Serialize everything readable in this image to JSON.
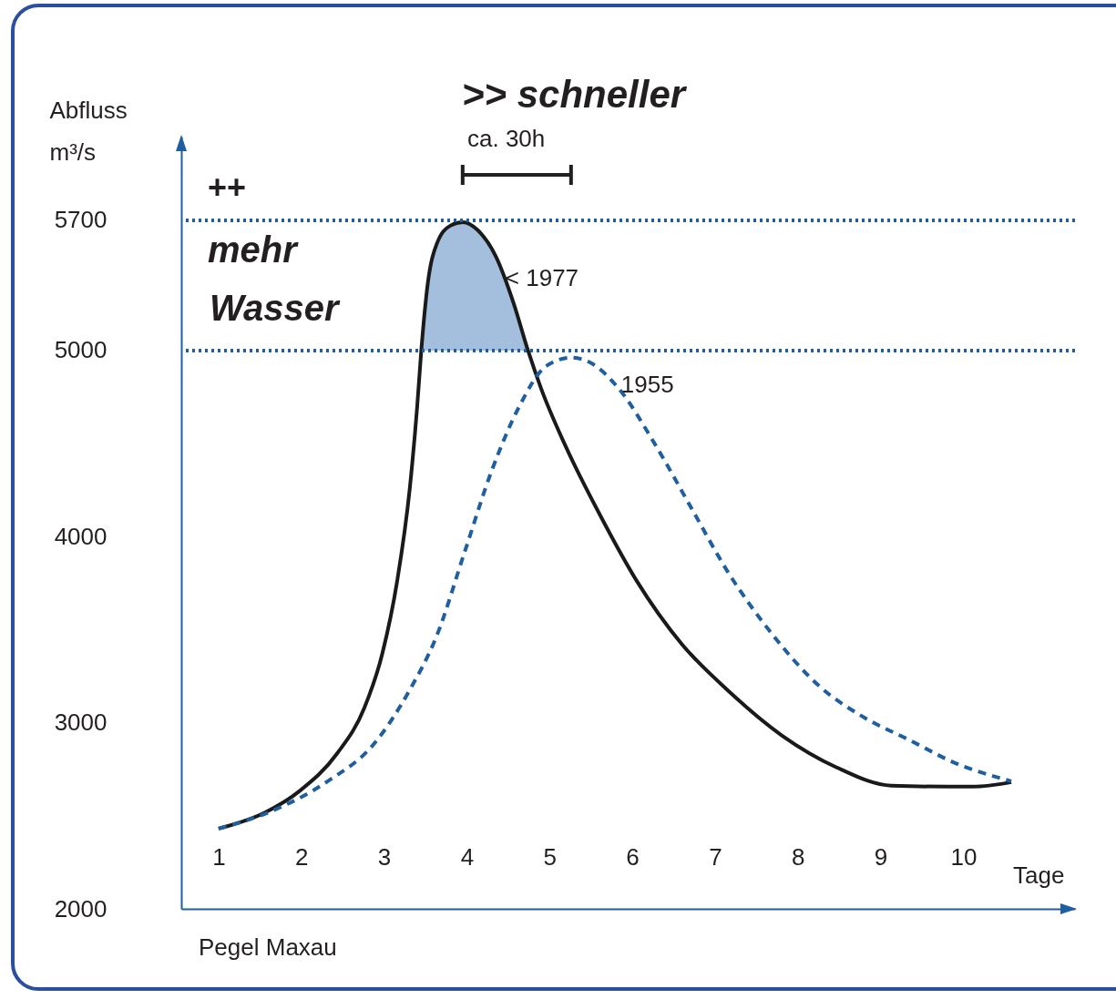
{
  "chart_data": {
    "type": "line",
    "xlabel": "Tage",
    "ylabel": "Abfluss m³/s",
    "xlim": [
      0.55,
      11.35
    ],
    "xticks": [
      1,
      2,
      3,
      4,
      5,
      6,
      7,
      8,
      9,
      10
    ],
    "ylim": [
      2000,
      6150
    ],
    "yticks": [
      2000,
      3000,
      4000,
      5000,
      5700
    ],
    "grid": false,
    "marker": "none",
    "series": [
      {
        "type": "area",
        "color": "#a3bfdd",
        "x": [
          3.45,
          3.53,
          3.64,
          3.8,
          3.95,
          4.13,
          4.35,
          4.57,
          4.74
        ],
        "values": [
          5000,
          5366,
          5577,
          5671,
          5690,
          5648,
          5507,
          5249,
          5000
        ]
      },
      {
        "name": "< 1977",
        "color": "#1a1a1a",
        "line_style": "solid",
        "x": [
          1,
          1.55,
          1.99,
          2.43,
          2.76,
          2.98,
          3.16,
          3.31,
          3.4,
          3.45,
          3.53,
          3.64,
          3.8,
          3.95,
          4.13,
          4.35,
          4.57,
          4.74,
          4.9,
          5.18,
          5.62,
          6.05,
          6.6,
          7.15,
          7.81,
          8.47,
          9.13,
          9.79,
          10.12,
          10.58
        ],
        "values": [
          2431,
          2515,
          2637,
          2833,
          3078,
          3373,
          3765,
          4255,
          4696,
          5000,
          5366,
          5577,
          5671,
          5690,
          5648,
          5507,
          5249,
          5000,
          4794,
          4500,
          4108,
          3765,
          3422,
          3176,
          2931,
          2760,
          2662,
          2657,
          2657,
          2681
        ]
      },
      {
        "name": "1955",
        "color": "#1f5f9f",
        "line_style": "dashed",
        "x": [
          1,
          1.66,
          2.32,
          2.87,
          3.31,
          3.64,
          3.97,
          4.3,
          4.63,
          4.96,
          5.26,
          5.51,
          5.84,
          6.27,
          6.71,
          7.15,
          7.7,
          8.25,
          8.8,
          9.35,
          9.9,
          10.58
        ],
        "values": [
          2431,
          2529,
          2686,
          2882,
          3176,
          3471,
          3912,
          4353,
          4696,
          4917,
          4962,
          4931,
          4794,
          4500,
          4157,
          3814,
          3471,
          3201,
          3029,
          2907,
          2784,
          2686
        ]
      }
    ],
    "ref_lines": [
      {
        "axis": "y",
        "value": 5700,
        "color": "#1f5f9f",
        "line_style": "dotted"
      },
      {
        "axis": "y",
        "value": 5000,
        "color": "#1f5f9f",
        "line_style": "dotted"
      }
    ],
    "annotations": [
      ">> schneller",
      "ca. 30h",
      "++",
      "mehr",
      "Wasser",
      "Pegel Maxau"
    ]
  }
}
